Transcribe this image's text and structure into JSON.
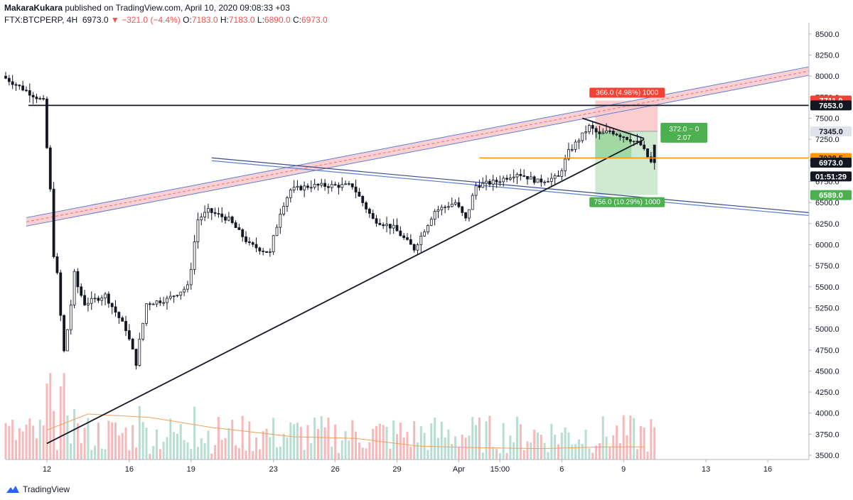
{
  "header": {
    "author": "MakaraKukara",
    "published": "published on TradingView.com, April 10, 2020 09:08:33 +03",
    "symbol": "FTX:BTCPERP, 4H",
    "last": "6973.0",
    "change": "▼ −321.0 (−4.4%)",
    "o_label": "O:",
    "o": "7183.0",
    "h_label": "H:",
    "h": "7183.0",
    "l_label": "L:",
    "l": "6890.0",
    "c_label": "C:",
    "c": "6973.0"
  },
  "footer": {
    "brand": "TradingView",
    "logo_icon": "tradingview-logo-icon"
  },
  "colors": {
    "up": "#26a69a",
    "down": "#ef5350",
    "candle": "#131722",
    "vol_up": "#a5d6c8",
    "vol_down": "#f4a6a6",
    "ma": "#f5a05a",
    "orange_level": "#ff9800",
    "profit": "#4caf50",
    "loss": "#f44336",
    "channel_fill": "#f8c8cc",
    "channel_edge": "#5b7fd6"
  },
  "chart_data": {
    "type": "candlestick",
    "ylim": [
      3450,
      8600
    ],
    "y_ticks": [
      3500,
      3750,
      4000,
      4250,
      4500,
      4750,
      5000,
      5250,
      5500,
      5750,
      6000,
      6250,
      6500,
      6750,
      7000,
      7250,
      7500,
      7750,
      8000,
      8250,
      8500
    ],
    "y_tick_labels": [
      "3500.0",
      "3750.0",
      "4000.0",
      "4250.0",
      "4500.0",
      "4750.0",
      "5000.0",
      "5250.0",
      "5500.0",
      "5750.0",
      "6000.0",
      "6250.0",
      "6500.0",
      "6750.0",
      "7000.0",
      "7250.0",
      "7500.0",
      "7750.0",
      "8000.0",
      "8250.0",
      "8500.0"
    ],
    "x_start": "2020-03-10",
    "x_end": "2020-04-18",
    "x_ticks": [
      {
        "date": "2020-03-12",
        "label": "12"
      },
      {
        "date": "2020-03-16",
        "label": "16"
      },
      {
        "date": "2020-03-19",
        "label": "19"
      },
      {
        "date": "2020-03-23",
        "label": "23"
      },
      {
        "date": "2020-03-26",
        "label": "26"
      },
      {
        "date": "2020-03-29",
        "label": "29"
      },
      {
        "date": "2020-04-01",
        "label": "Apr"
      },
      {
        "date": "2020-04-03",
        "label": "15:00"
      },
      {
        "date": "2020-04-06",
        "label": "6"
      },
      {
        "date": "2020-04-09",
        "label": "9"
      },
      {
        "date": "2020-04-13",
        "label": "13"
      },
      {
        "date": "2020-04-16",
        "label": "16"
      }
    ],
    "price_anchors": [
      [
        "2020-03-10",
        8000
      ],
      [
        "2020-03-11",
        7850
      ],
      [
        "2020-03-12",
        7700
      ],
      [
        "2020-03-12",
        6000
      ],
      [
        "2020-03-13",
        4700
      ],
      [
        "2020-03-13",
        5600
      ],
      [
        "2020-03-14",
        5300
      ],
      [
        "2020-03-15",
        5400
      ],
      [
        "2020-03-16",
        5000
      ],
      [
        "2020-03-16",
        4600
      ],
      [
        "2020-03-17",
        5300
      ],
      [
        "2020-03-18",
        5350
      ],
      [
        "2020-03-19",
        5500
      ],
      [
        "2020-03-19",
        6300
      ],
      [
        "2020-03-20",
        6400
      ],
      [
        "2020-03-21",
        6300
      ],
      [
        "2020-03-22",
        6000
      ],
      [
        "2020-03-23",
        5900
      ],
      [
        "2020-03-23",
        6400
      ],
      [
        "2020-03-24",
        6650
      ],
      [
        "2020-03-25",
        6700
      ],
      [
        "2020-03-26",
        6700
      ],
      [
        "2020-03-27",
        6700
      ],
      [
        "2020-03-28",
        6300
      ],
      [
        "2020-03-29",
        6200
      ],
      [
        "2020-03-30",
        5950
      ],
      [
        "2020-03-31",
        6400
      ],
      [
        "2020-04-01",
        6500
      ],
      [
        "2020-04-01",
        6300
      ],
      [
        "2020-04-02",
        6700
      ],
      [
        "2020-04-03",
        6750
      ],
      [
        "2020-04-04",
        6850
      ],
      [
        "2020-04-05",
        6750
      ],
      [
        "2020-04-06",
        6800
      ],
      [
        "2020-04-06",
        7100
      ],
      [
        "2020-04-07",
        7250
      ],
      [
        "2020-04-07",
        7400
      ],
      [
        "2020-04-08",
        7300
      ],
      [
        "2020-04-08",
        7350
      ],
      [
        "2020-04-09",
        7300
      ],
      [
        "2020-04-09",
        7250
      ],
      [
        "2020-04-10",
        7183
      ],
      [
        "2020-04-10",
        6973
      ]
    ],
    "moving_average": [
      [
        "2020-03-12",
        3800
      ],
      [
        "2020-03-14",
        3990
      ],
      [
        "2020-03-17",
        3950
      ],
      [
        "2020-03-20",
        3830
      ],
      [
        "2020-03-24",
        3720
      ],
      [
        "2020-03-27",
        3700
      ],
      [
        "2020-03-30",
        3610
      ],
      [
        "2020-04-02",
        3590
      ],
      [
        "2020-04-05",
        3580
      ],
      [
        "2020-04-08",
        3600
      ],
      [
        "2020-04-10",
        3600
      ]
    ],
    "trendlines": [
      {
        "name": "ascending-support",
        "from": [
          "2020-03-12",
          3640
        ],
        "to": [
          "2020-04-10",
          7250
        ]
      },
      {
        "name": "resistance-7653",
        "from": [
          "2020-03-12",
          7653
        ],
        "to": [
          "2020-04-18",
          7653
        ]
      },
      {
        "name": "triangle-top",
        "from": [
          "2020-04-07",
          7500
        ],
        "to": [
          "2020-04-10",
          7260
        ]
      },
      {
        "name": "orange-level-7028",
        "from": [
          "2020-04-02",
          7028.5
        ],
        "to": [
          "2020-04-18",
          7028.5
        ]
      }
    ],
    "rising_channel": {
      "from": [
        "2020-03-11",
        6270
      ],
      "to": [
        "2020-04-18",
        8060
      ]
    },
    "falling_channel": {
      "from": [
        "2020-03-20",
        7030
      ],
      "to": [
        "2020-04-18",
        6380
      ]
    },
    "position": {
      "entry": 7345.0,
      "stop": 7711.0,
      "target": 6589.0,
      "from": "2020-04-07",
      "to": "2020-04-11",
      "stop_label": "366.0 (4.98%) 1000",
      "target_label": "756.0 (10.29%) 1000",
      "ratio_line1": "372.0 ~ 0",
      "ratio_line2": "2.07"
    },
    "price_tags": [
      {
        "price": 7711.0,
        "label": "7711.0",
        "bg": "#f44336",
        "fg": "#ffffff"
      },
      {
        "price": 7653.0,
        "label": "7653.0",
        "bg": "#131722",
        "fg": "#ffffff"
      },
      {
        "price": 7345.0,
        "label": "7345.0",
        "bg": "#e0e3eb",
        "fg": "#131722"
      },
      {
        "price": 7028.5,
        "label": "7028.5",
        "bg": "#ff9800",
        "fg": "#131722"
      },
      {
        "price": 6973.0,
        "label": "6973.0",
        "bg": "#131722",
        "fg": "#ffffff"
      },
      {
        "price": 6810.0,
        "label": "01:51:29",
        "bg": "#131722",
        "fg": "#ffffff"
      },
      {
        "price": 6589.0,
        "label": "6589.0",
        "bg": "#4caf50",
        "fg": "#ffffff"
      }
    ]
  }
}
